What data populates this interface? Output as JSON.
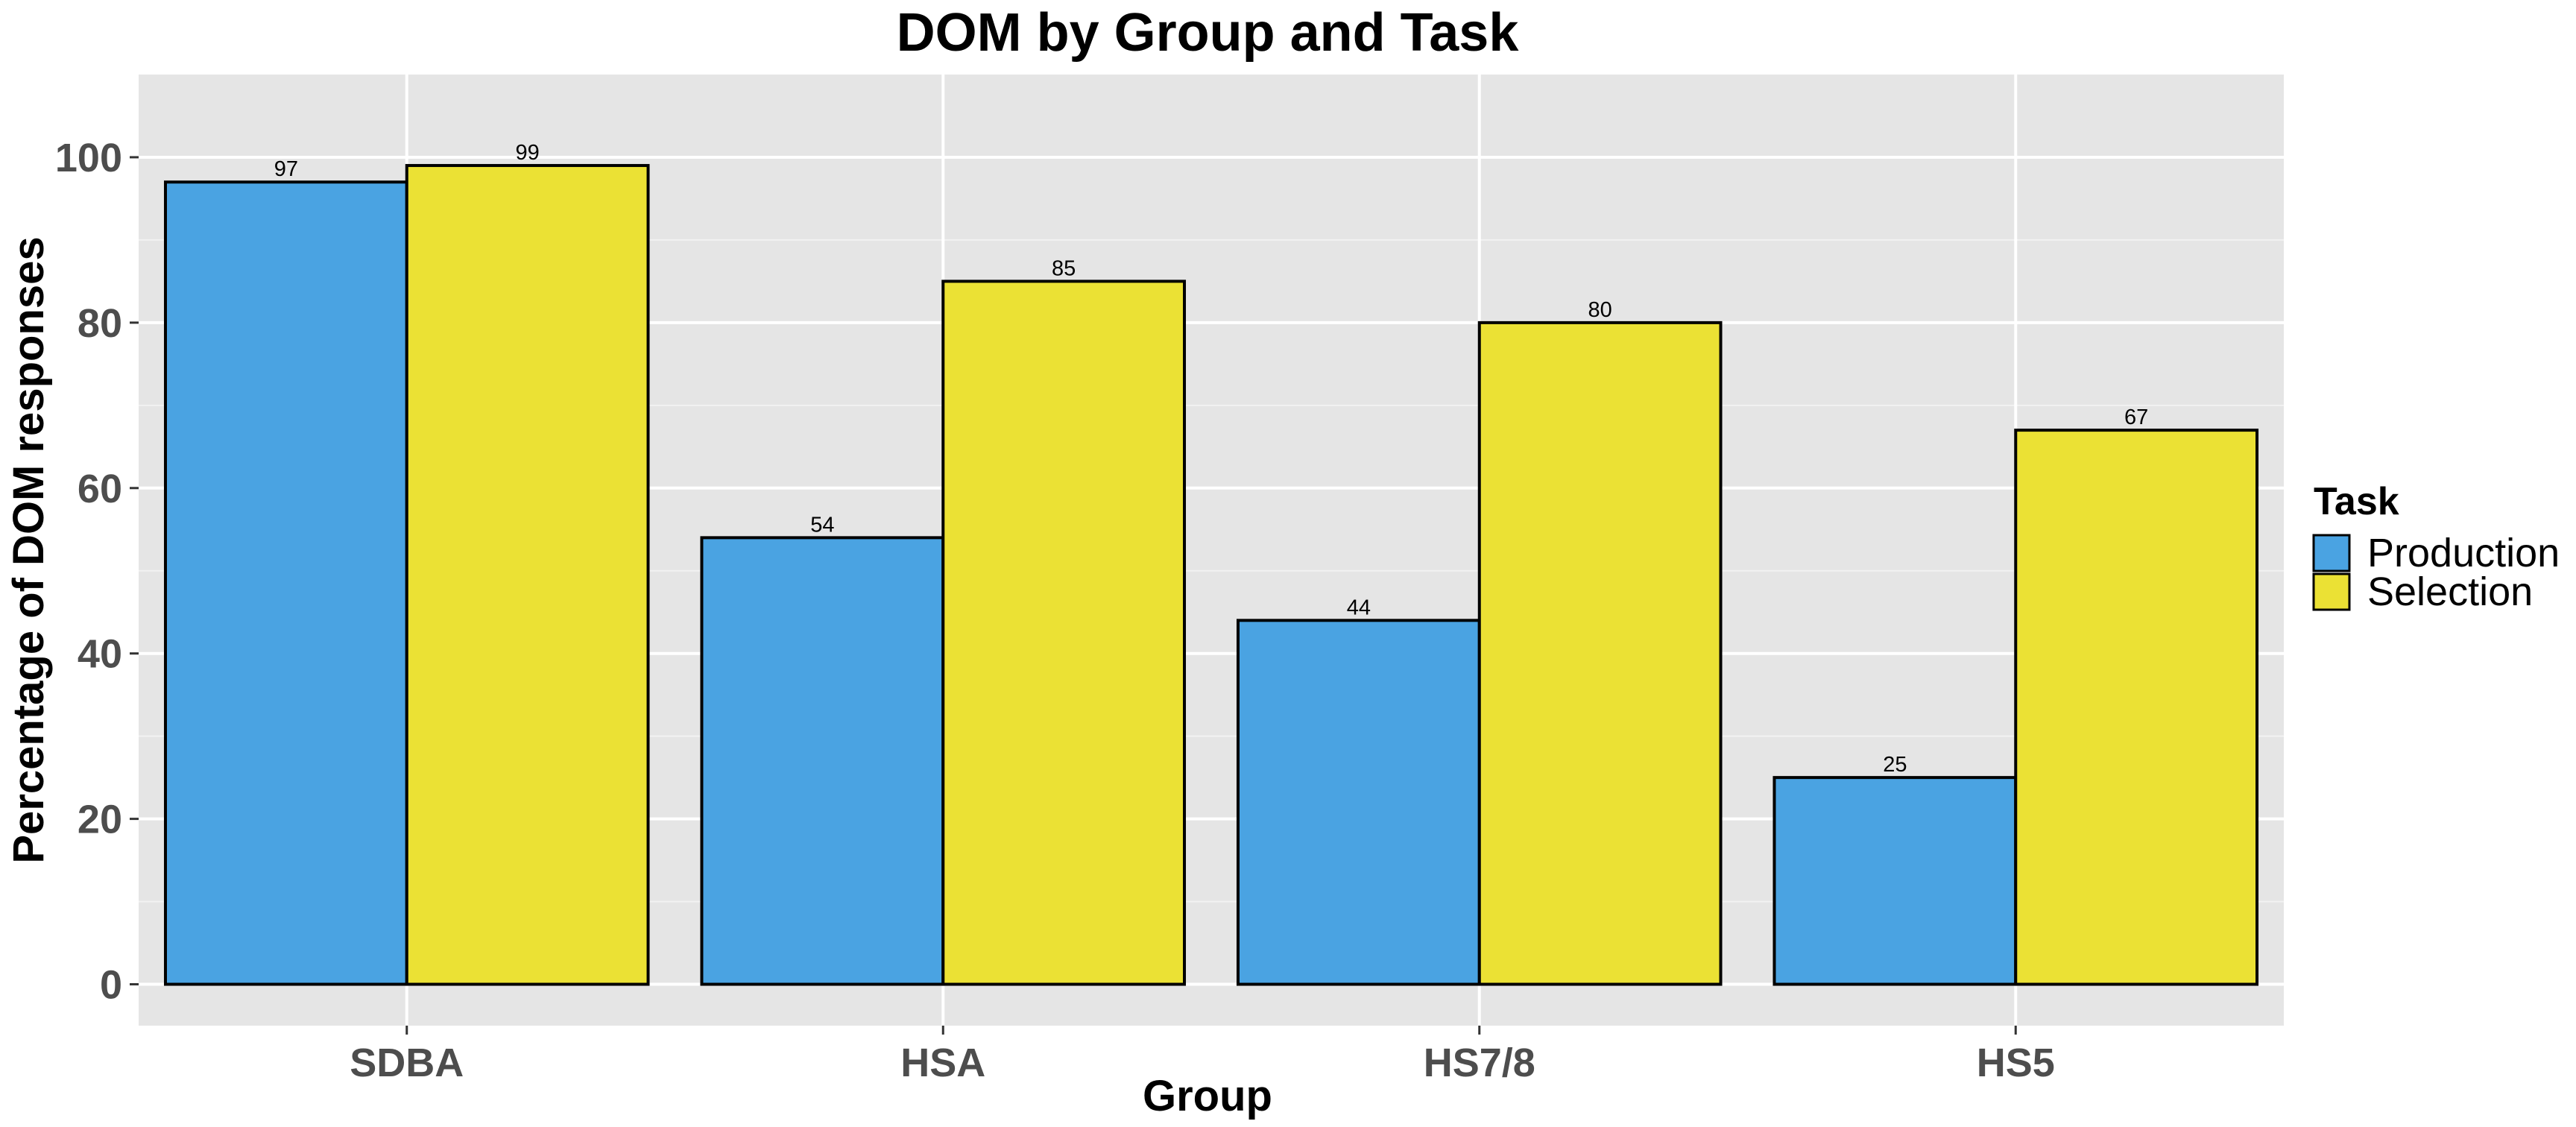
{
  "chart_data": {
    "type": "bar",
    "title": "DOM by Group and Task",
    "xlabel": "Group",
    "ylabel": "Percentage of DOM responses",
    "categories": [
      "SDBA",
      "HSA",
      "HS7/8",
      "HS5"
    ],
    "series": [
      {
        "name": "Production",
        "color": "#4aa3e2",
        "values": [
          97,
          54,
          44,
          25
        ]
      },
      {
        "name": "Selection",
        "color": "#ebe134",
        "values": [
          99,
          85,
          80,
          67
        ]
      }
    ],
    "data_labels": [
      [
        "97",
        "54",
        "44",
        "25"
      ],
      [
        "99",
        "85",
        "80",
        "67"
      ]
    ],
    "ylim": [
      -5,
      110
    ],
    "yticks": [
      0,
      20,
      40,
      60,
      80,
      100
    ],
    "ytick_labels": [
      "0",
      "20",
      "40",
      "60",
      "80",
      "100"
    ],
    "grid": true,
    "legend": {
      "title": "Task",
      "position": "right"
    },
    "panel_background": "#e5e5e5",
    "bar_outline": "#000000"
  }
}
